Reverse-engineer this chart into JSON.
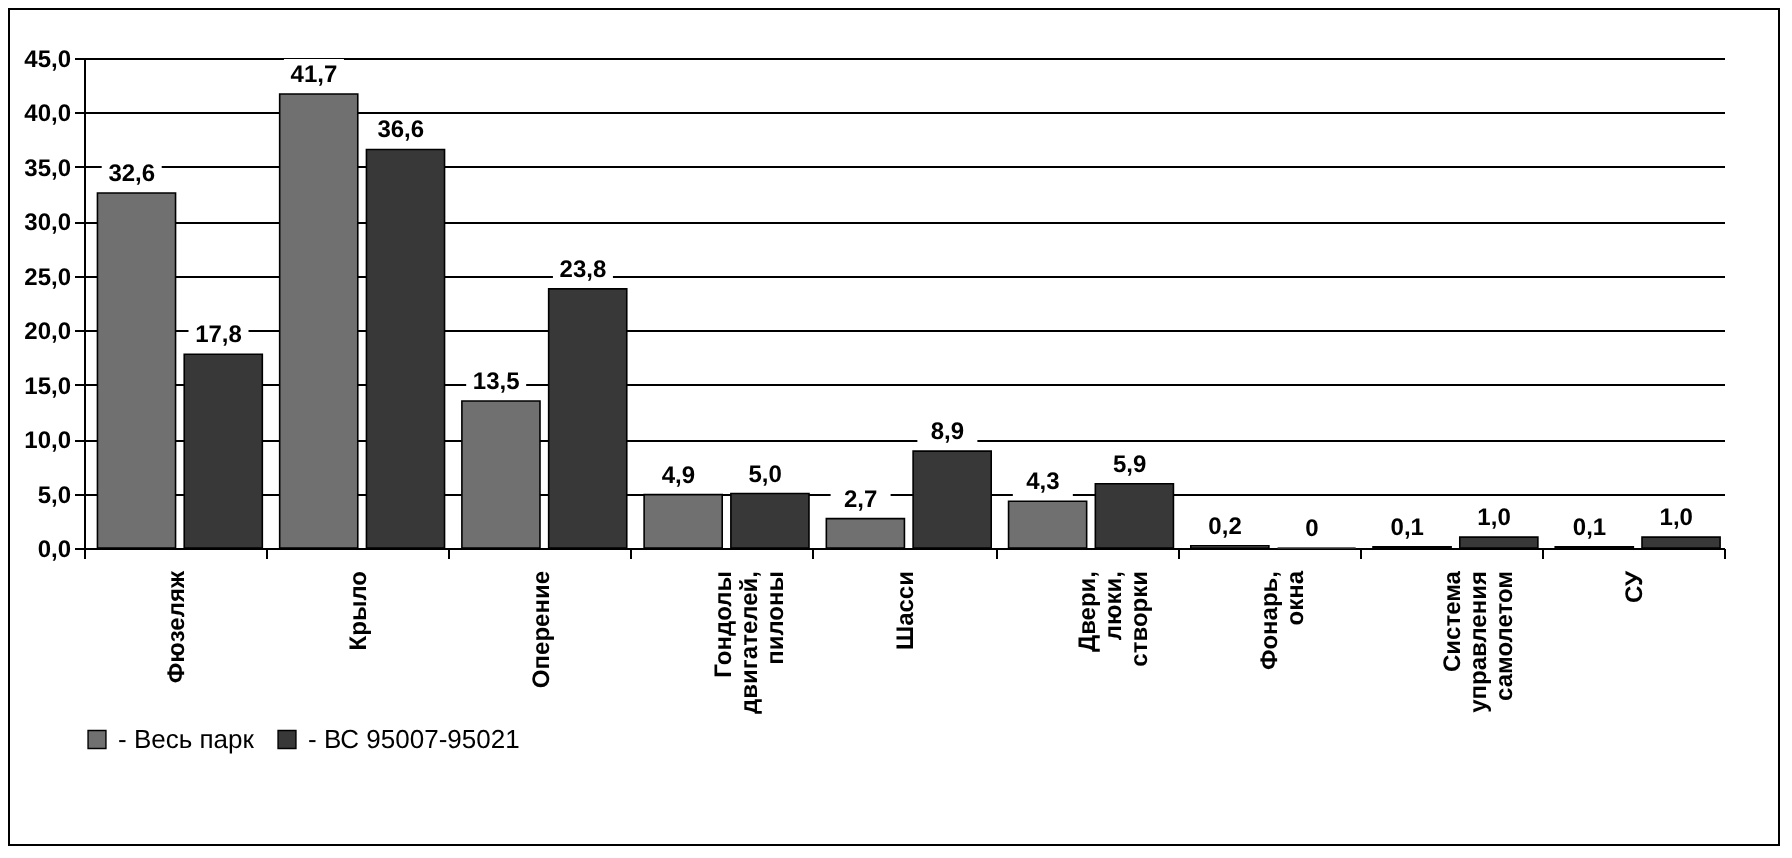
{
  "chart_data": {
    "type": "bar",
    "categories": [
      "Фюзеляж",
      "Крыло",
      "Оперение",
      "Гондолы\nдвигателей,\nпилоны",
      "Шасси",
      "Двери,\nлюки,\nстворки",
      "Фонарь,\nокна",
      "Система\nуправления\nсамолетом",
      "СУ"
    ],
    "series": [
      {
        "name": "- Весь парк",
        "color": "#707070",
        "values": [
          32.6,
          41.7,
          13.5,
          4.9,
          2.7,
          4.3,
          0.2,
          0.1,
          0.1
        ],
        "value_labels": [
          "32,6",
          "41,7",
          "13,5",
          "4,9",
          "2,7",
          "4,3",
          "0,2",
          "0,1",
          "0,1"
        ]
      },
      {
        "name": "- ВС 95007-95021",
        "color": "#383838",
        "values": [
          17.8,
          36.6,
          23.8,
          5.0,
          8.9,
          5.9,
          0,
          1.0,
          1.0
        ],
        "value_labels": [
          "17,8",
          "36,6",
          "23,8",
          "5,0",
          "8,9",
          "5,9",
          "0",
          "1,0",
          "1,0"
        ]
      }
    ],
    "ylim": [
      0,
      45
    ],
    "yticks": [
      {
        "value": 0,
        "label": "0,0"
      },
      {
        "value": 5,
        "label": "5,0"
      },
      {
        "value": 10,
        "label": "10,0"
      },
      {
        "value": 15,
        "label": "15,0"
      },
      {
        "value": 20,
        "label": "20,0"
      },
      {
        "value": 25,
        "label": "25,0"
      },
      {
        "value": 30,
        "label": "30,0"
      },
      {
        "value": 35,
        "label": "35,0"
      },
      {
        "value": 40,
        "label": "40,0"
      },
      {
        "value": 45,
        "label": "45,0"
      }
    ],
    "grid": "y",
    "legend": "bottom"
  }
}
